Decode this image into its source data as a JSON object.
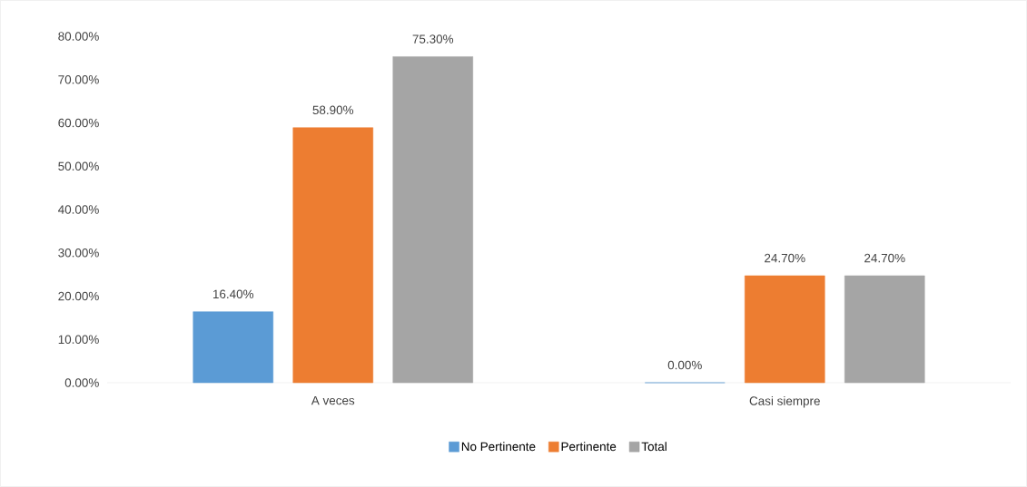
{
  "chart_data": {
    "type": "bar",
    "categories": [
      "A veces",
      "Casi siempre"
    ],
    "series": [
      {
        "name": "No Pertinente",
        "color": "#5b9bd5",
        "values": [
          16.4,
          0
        ],
        "value_labels": [
          "16.40%",
          "0.00%"
        ]
      },
      {
        "name": "Pertinente",
        "color": "#ed7d31",
        "values": [
          58.9,
          24.7
        ],
        "value_labels": [
          "58.90%",
          "24.70%"
        ]
      },
      {
        "name": "Total",
        "color": "#a5a5a5",
        "values": [
          75.3,
          24.7
        ],
        "value_labels": [
          "75.30%",
          "24.70%"
        ]
      }
    ],
    "ylim": [
      0,
      80
    ],
    "yticks": [
      {
        "value": 0,
        "label": "0.00%"
      },
      {
        "value": 10,
        "label": "10.00%"
      },
      {
        "value": 20,
        "label": "20.00%"
      },
      {
        "value": 30,
        "label": "30.00%"
      },
      {
        "value": 40,
        "label": "40.00%"
      },
      {
        "value": 50,
        "label": "50.00%"
      },
      {
        "value": 60,
        "label": "60.00%"
      },
      {
        "value": 70,
        "label": "70.00%"
      },
      {
        "value": 80,
        "label": "80.00%"
      }
    ],
    "grid": false,
    "legend": "bottom"
  }
}
